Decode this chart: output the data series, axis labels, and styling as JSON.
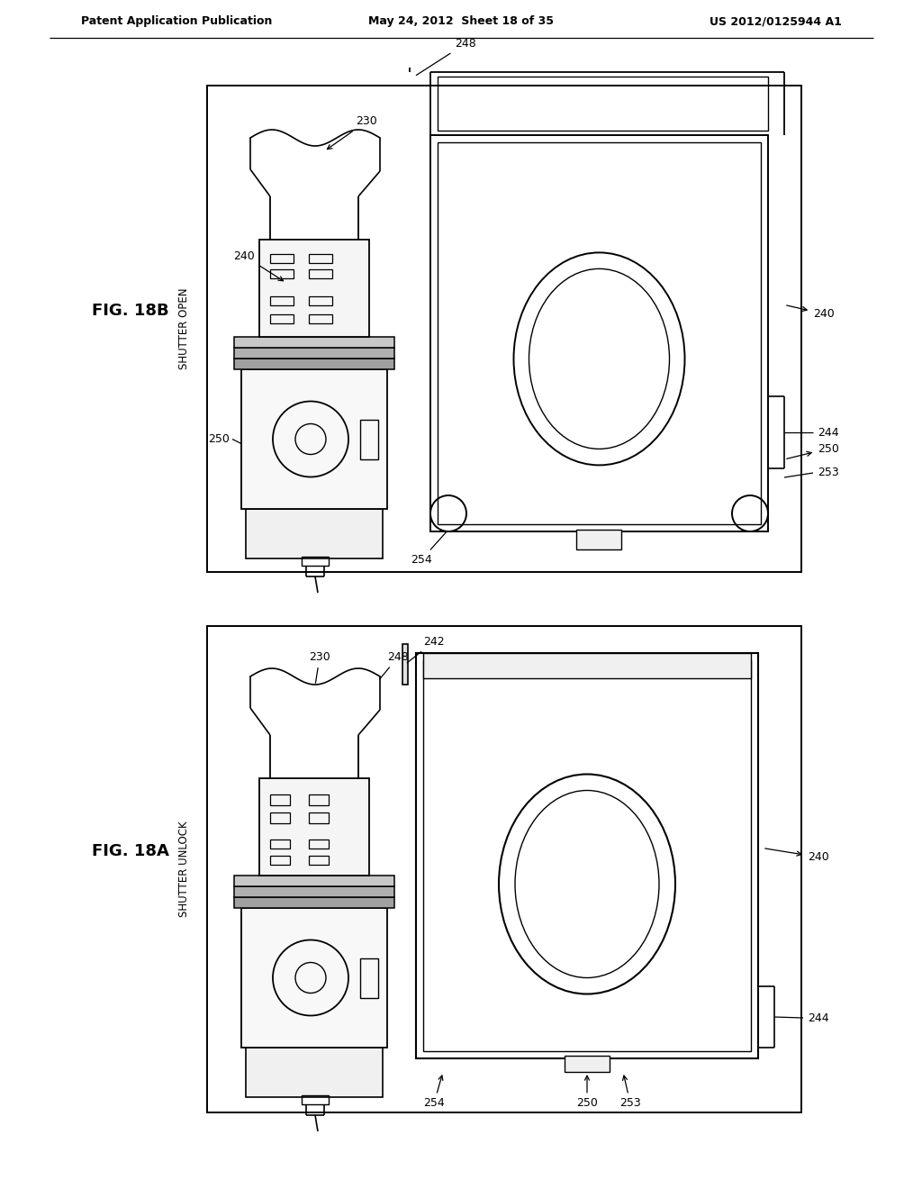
{
  "header_left": "Patent Application Publication",
  "header_mid": "May 24, 2012  Sheet 18 of 35",
  "header_right": "US 2012/0125944 A1",
  "fig_18b": "FIG. 18B",
  "fig_18a": "FIG. 18A",
  "shutter_open": "SHUTTER OPEN",
  "shutter_unlock": "SHUTTER UNLOCK",
  "bg": "#ffffff",
  "fg": "#000000"
}
